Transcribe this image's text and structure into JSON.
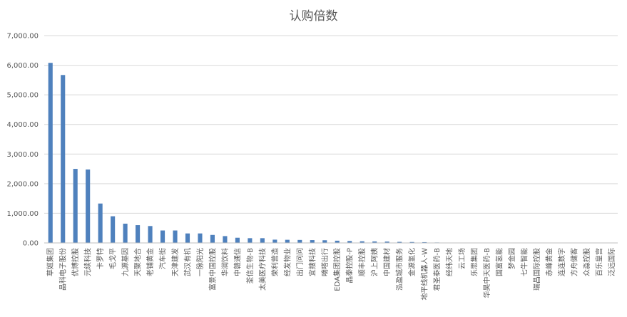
{
  "chart_data": {
    "type": "bar",
    "title": "认购倍数",
    "xlabel": "",
    "ylabel": "",
    "ylim": [
      0,
      7000
    ],
    "yticks": [
      "0.00",
      "1,000.00",
      "2,000.00",
      "3,000.00",
      "4,000.00",
      "5,000.00",
      "6,000.00",
      "7,000.00"
    ],
    "grid": true,
    "legend": "none",
    "bar_color": "#4f81bd",
    "categories": [
      "草姬集团",
      "晶科电子股份",
      "优博控股",
      "元续科技",
      "卡罗特",
      "毛戈平",
      "九源基因",
      "天聚地合",
      "老铺黄金",
      "汽车街",
      "天津建发",
      "武汉有机",
      "一脉阳光",
      "富景中国控股",
      "华润饮料",
      "中赣通信",
      "荃信生物-B",
      "太美医疗科技",
      "荣利营造",
      "经发物业",
      "出门问问",
      "宜搜科技",
      "嘀嗒出行",
      "EDA集团控股",
      "晶泰控股-P",
      "顺丰控股",
      "沪上阿姨",
      "中国建材",
      "泓盈城市服务",
      "金源氢化",
      "地平线机器人-W",
      "君圣泰医药-B",
      "经纬天地",
      "云工场",
      "乐思集团",
      "华昊中天医药-B",
      "国富氢能",
      "梦金园",
      "七牛智能",
      "瑞昌国际控股",
      "赤峰黄金",
      "连连数字",
      "方舟健客",
      "众淼控股",
      "百乐皇宫",
      "泛远国际"
    ],
    "values": [
      6080,
      5670,
      2500,
      2480,
      1330,
      900,
      650,
      600,
      570,
      420,
      420,
      320,
      320,
      270,
      230,
      175,
      160,
      160,
      110,
      105,
      100,
      95,
      90,
      75,
      65,
      55,
      50,
      45,
      35,
      30,
      25,
      15,
      10,
      8,
      6,
      5,
      4,
      4,
      3,
      3,
      2,
      2,
      2,
      1,
      1,
      1
    ]
  }
}
